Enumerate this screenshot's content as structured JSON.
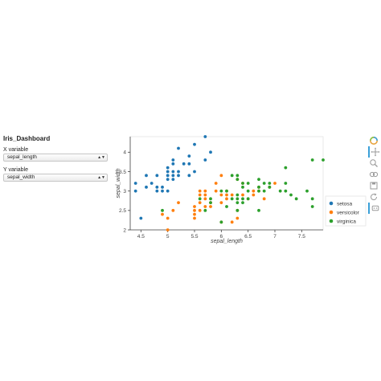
{
  "dashboard": {
    "title": "Iris_Dashboard",
    "x_control": {
      "label": "X variable",
      "selected": "sepal_length"
    },
    "y_control": {
      "label": "Y variable",
      "selected": "sepal_width"
    }
  },
  "toolbar": {
    "icons": [
      "bokeh-logo-icon",
      "pan-icon",
      "box-zoom-icon",
      "wheel-zoom-icon",
      "save-icon",
      "reset-icon",
      "hover-icon"
    ],
    "active": [
      "pan-icon",
      "hover-icon"
    ]
  },
  "chart_data": {
    "type": "scatter",
    "xlabel": "sepal_length",
    "ylabel": "sepal_width",
    "xlim": [
      4.3,
      7.9
    ],
    "ylim": [
      2.0,
      4.4
    ],
    "xticks": [
      "4.5",
      "5",
      "5.5",
      "6",
      "6.5",
      "7",
      "7.5"
    ],
    "xtick_values": [
      4.5,
      5,
      5.5,
      6,
      6.5,
      7,
      7.5
    ],
    "yticks": [
      "2",
      "2.5",
      "3",
      "3.5",
      "4"
    ],
    "ytick_values": [
      2,
      2.5,
      3,
      3.5,
      4
    ],
    "grid": false,
    "legend_position": "bottom-right outside",
    "series": [
      {
        "name": "setosa",
        "color": "#1f77b4",
        "points": [
          [
            4.4,
            3.2
          ],
          [
            4.4,
            3.0
          ],
          [
            4.5,
            2.3
          ],
          [
            4.6,
            3.4
          ],
          [
            4.6,
            3.1
          ],
          [
            4.7,
            3.2
          ],
          [
            4.8,
            3.4
          ],
          [
            4.8,
            3.0
          ],
          [
            4.8,
            3.1
          ],
          [
            4.9,
            3.0
          ],
          [
            4.9,
            3.1
          ],
          [
            5.0,
            3.6
          ],
          [
            5.0,
            3.4
          ],
          [
            5.0,
            3.0
          ],
          [
            5.0,
            3.3
          ],
          [
            5.0,
            3.5
          ],
          [
            5.1,
            3.5
          ],
          [
            5.1,
            3.8
          ],
          [
            5.1,
            3.7
          ],
          [
            5.1,
            3.3
          ],
          [
            5.1,
            3.4
          ],
          [
            5.2,
            3.5
          ],
          [
            5.2,
            4.1
          ],
          [
            5.2,
            3.4
          ],
          [
            5.3,
            3.7
          ],
          [
            5.4,
            3.9
          ],
          [
            5.4,
            3.4
          ],
          [
            5.4,
            3.7
          ],
          [
            5.5,
            4.2
          ],
          [
            5.5,
            3.5
          ],
          [
            5.7,
            4.4
          ],
          [
            5.7,
            3.8
          ],
          [
            5.8,
            4.0
          ]
        ]
      },
      {
        "name": "versicolor",
        "color": "#ff7f0e",
        "points": [
          [
            4.9,
            2.4
          ],
          [
            5.0,
            2.0
          ],
          [
            5.0,
            2.3
          ],
          [
            5.1,
            2.5
          ],
          [
            5.2,
            2.7
          ],
          [
            5.5,
            2.3
          ],
          [
            5.5,
            2.4
          ],
          [
            5.5,
            2.5
          ],
          [
            5.5,
            2.6
          ],
          [
            5.6,
            2.9
          ],
          [
            5.6,
            3.0
          ],
          [
            5.6,
            2.5
          ],
          [
            5.6,
            2.7
          ],
          [
            5.7,
            2.8
          ],
          [
            5.7,
            2.6
          ],
          [
            5.7,
            3.0
          ],
          [
            5.7,
            2.9
          ],
          [
            5.8,
            2.7
          ],
          [
            5.8,
            2.6
          ],
          [
            5.9,
            3.0
          ],
          [
            5.9,
            3.2
          ],
          [
            6.0,
            2.2
          ],
          [
            6.0,
            2.9
          ],
          [
            6.0,
            2.7
          ],
          [
            6.0,
            3.4
          ],
          [
            6.1,
            2.9
          ],
          [
            6.1,
            2.8
          ],
          [
            6.1,
            3.0
          ],
          [
            6.2,
            2.2
          ],
          [
            6.2,
            2.9
          ],
          [
            6.3,
            3.3
          ],
          [
            6.3,
            2.5
          ],
          [
            6.3,
            2.3
          ],
          [
            6.4,
            3.2
          ],
          [
            6.4,
            2.9
          ],
          [
            6.5,
            2.8
          ],
          [
            6.6,
            2.9
          ],
          [
            6.6,
            3.0
          ],
          [
            6.7,
            3.1
          ],
          [
            6.7,
            3.0
          ],
          [
            6.8,
            2.8
          ],
          [
            6.9,
            3.1
          ],
          [
            7.0,
            3.2
          ]
        ]
      },
      {
        "name": "virginica",
        "color": "#2ca02c",
        "points": [
          [
            4.9,
            2.5
          ],
          [
            5.6,
            2.8
          ],
          [
            5.7,
            2.5
          ],
          [
            5.8,
            2.7
          ],
          [
            5.8,
            2.8
          ],
          [
            6.0,
            2.2
          ],
          [
            6.0,
            3.0
          ],
          [
            6.1,
            3.0
          ],
          [
            6.1,
            2.6
          ],
          [
            6.2,
            2.8
          ],
          [
            6.2,
            3.4
          ],
          [
            6.3,
            3.3
          ],
          [
            6.3,
            2.9
          ],
          [
            6.3,
            2.7
          ],
          [
            6.3,
            2.8
          ],
          [
            6.3,
            3.4
          ],
          [
            6.3,
            2.5
          ],
          [
            6.4,
            2.7
          ],
          [
            6.4,
            3.2
          ],
          [
            6.4,
            2.8
          ],
          [
            6.4,
            3.1
          ],
          [
            6.5,
            3.0
          ],
          [
            6.5,
            3.2
          ],
          [
            6.5,
            2.8
          ],
          [
            6.7,
            2.5
          ],
          [
            6.7,
            3.3
          ],
          [
            6.7,
            3.1
          ],
          [
            6.7,
            3.0
          ],
          [
            6.8,
            3.0
          ],
          [
            6.8,
            3.2
          ],
          [
            6.9,
            3.1
          ],
          [
            6.9,
            3.2
          ],
          [
            7.1,
            3.0
          ],
          [
            7.2,
            3.6
          ],
          [
            7.2,
            3.2
          ],
          [
            7.2,
            3.0
          ],
          [
            7.3,
            2.9
          ],
          [
            7.4,
            2.8
          ],
          [
            7.6,
            3.0
          ],
          [
            7.7,
            3.8
          ],
          [
            7.7,
            2.6
          ],
          [
            7.7,
            2.8
          ],
          [
            7.9,
            3.8
          ]
        ]
      }
    ]
  }
}
